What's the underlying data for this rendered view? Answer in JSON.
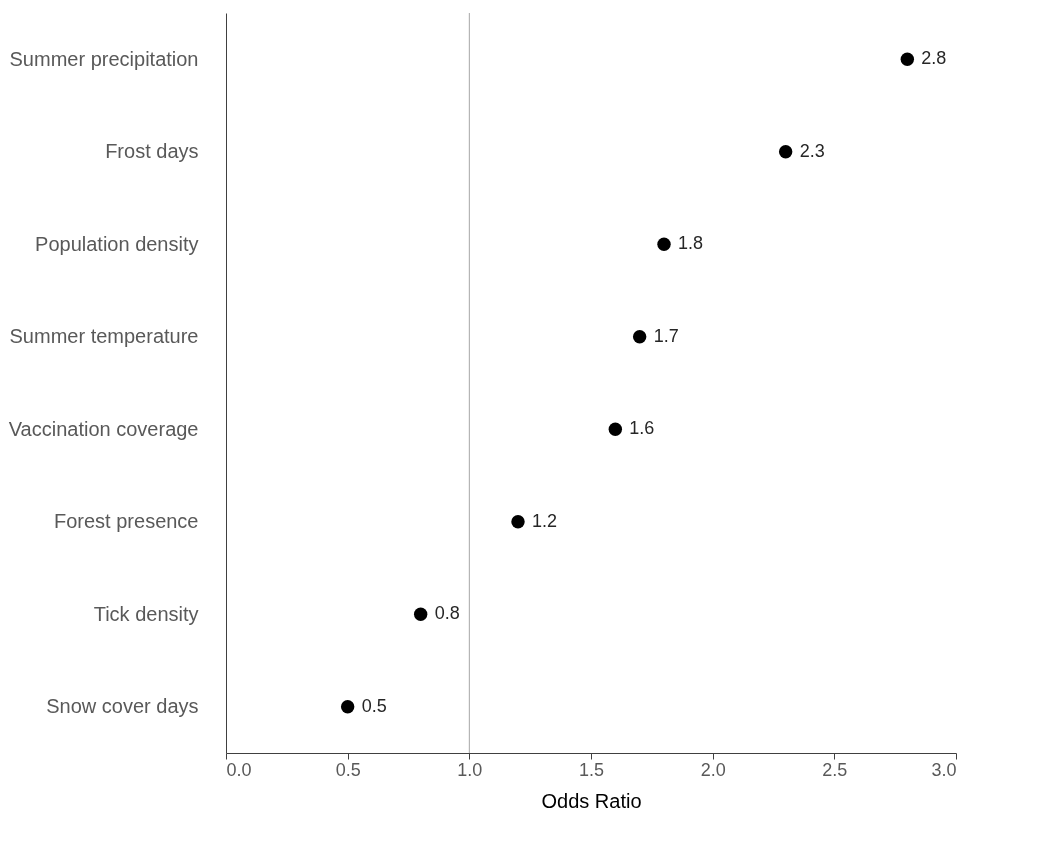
{
  "chart_data": {
    "type": "scatter",
    "orientation": "horizontal",
    "xlabel": "Odds Ratio",
    "categories": [
      "Summer precipitation",
      "Frost days",
      "Population density",
      "Summer temperature",
      "Vaccination coverage",
      "Forest presence",
      "Tick density",
      "Snow cover days"
    ],
    "series": [
      {
        "color": "#000000",
        "values": [
          2.8,
          2.3,
          1.8,
          1.7,
          1.6,
          1.2,
          0.8,
          0.5
        ]
      }
    ],
    "xlim": [
      0,
      3
    ],
    "xticks": [
      {
        "value": 0,
        "label": "0.0"
      },
      0.5,
      {
        "value": 1,
        "label": "1.0"
      },
      1.5,
      {
        "value": 2,
        "label": "2.0"
      },
      2.5,
      {
        "value": 3,
        "label": "3.0"
      }
    ],
    "ref_lines": [
      {
        "axis": "x",
        "value": 1,
        "color": "#a6a6a6"
      }
    ],
    "data_labels": true,
    "marker": "circle",
    "grid": false
  }
}
